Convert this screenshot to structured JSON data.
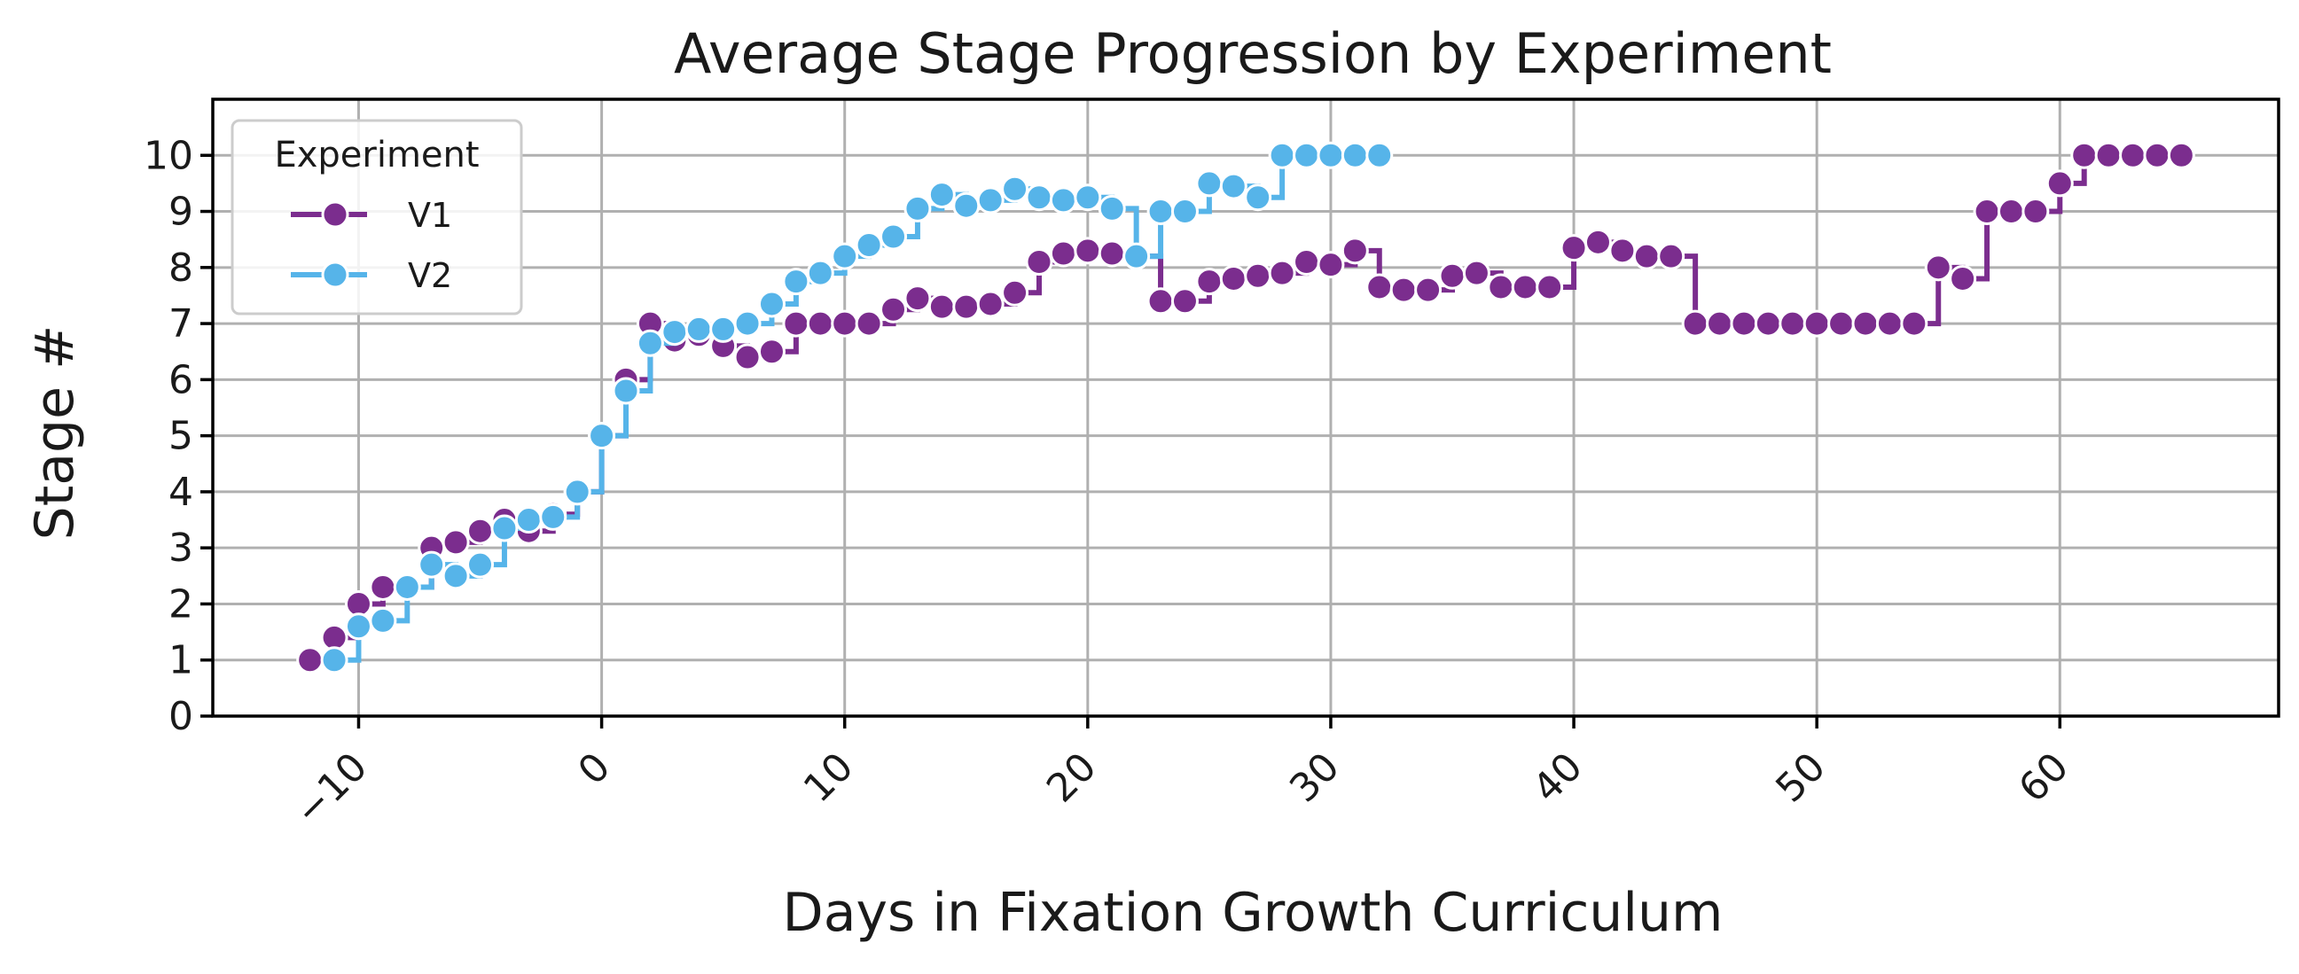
{
  "chart_data": {
    "type": "line",
    "title": "Average Stage Progression by Experiment",
    "xlabel": "Days in Fixation Growth Curriculum",
    "ylabel": "Stage #",
    "xlim": [
      -16,
      69
    ],
    "ylim": [
      0,
      11
    ],
    "x_ticks": [
      -10,
      0,
      10,
      20,
      30,
      40,
      50,
      60
    ],
    "x_tick_labels": [
      "−10",
      "0",
      "10",
      "20",
      "30",
      "40",
      "50",
      "60"
    ],
    "x_tick_rotation_deg": -45,
    "y_ticks": [
      0,
      1,
      2,
      3,
      4,
      5,
      6,
      7,
      8,
      9,
      10
    ],
    "y_tick_labels": [
      "0",
      "1",
      "2",
      "3",
      "4",
      "5",
      "6",
      "7",
      "8",
      "9",
      "10"
    ],
    "grid": true,
    "line_style": "step-post",
    "legend": {
      "title": "Experiment",
      "placement": "upper-left"
    },
    "series": [
      {
        "name": "V1",
        "color": "#7b2d8e",
        "points": [
          [
            -12,
            1.0
          ],
          [
            -11,
            1.4
          ],
          [
            -10,
            2.0
          ],
          [
            -9,
            2.3
          ],
          [
            -8,
            2.3
          ],
          [
            -7,
            3.0
          ],
          [
            -6,
            3.1
          ],
          [
            -5,
            3.3
          ],
          [
            -4,
            3.5
          ],
          [
            -3,
            3.3
          ],
          [
            -2,
            3.6
          ],
          [
            -1,
            4.0
          ],
          [
            0,
            5.0
          ],
          [
            1,
            6.0
          ],
          [
            2,
            7.0
          ],
          [
            3,
            6.7
          ],
          [
            4,
            6.8
          ],
          [
            5,
            6.6
          ],
          [
            6,
            6.4
          ],
          [
            7,
            6.5
          ],
          [
            8,
            7.0
          ],
          [
            9,
            7.0
          ],
          [
            10,
            7.0
          ],
          [
            11,
            7.0
          ],
          [
            12,
            7.25
          ],
          [
            13,
            7.45
          ],
          [
            14,
            7.3
          ],
          [
            15,
            7.3
          ],
          [
            16,
            7.35
          ],
          [
            17,
            7.55
          ],
          [
            18,
            8.1
          ],
          [
            19,
            8.25
          ],
          [
            20,
            8.3
          ],
          [
            21,
            8.25
          ],
          [
            22,
            8.2
          ],
          [
            23,
            7.4
          ],
          [
            24,
            7.4
          ],
          [
            25,
            7.75
          ],
          [
            26,
            7.8
          ],
          [
            27,
            7.85
          ],
          [
            28,
            7.9
          ],
          [
            29,
            8.1
          ],
          [
            30,
            8.05
          ],
          [
            31,
            8.3
          ],
          [
            32,
            7.65
          ],
          [
            33,
            7.6
          ],
          [
            34,
            7.6
          ],
          [
            35,
            7.85
          ],
          [
            36,
            7.9
          ],
          [
            37,
            7.65
          ],
          [
            38,
            7.65
          ],
          [
            39,
            7.65
          ],
          [
            40,
            8.35
          ],
          [
            41,
            8.45
          ],
          [
            42,
            8.3
          ],
          [
            43,
            8.2
          ],
          [
            44,
            8.2
          ],
          [
            45,
            7.0
          ],
          [
            46,
            7.0
          ],
          [
            47,
            7.0
          ],
          [
            48,
            7.0
          ],
          [
            49,
            7.0
          ],
          [
            50,
            7.0
          ],
          [
            51,
            7.0
          ],
          [
            52,
            7.0
          ],
          [
            53,
            7.0
          ],
          [
            54,
            7.0
          ],
          [
            55,
            8.0
          ],
          [
            56,
            7.8
          ],
          [
            57,
            9.0
          ],
          [
            58,
            9.0
          ],
          [
            59,
            9.0
          ],
          [
            60,
            9.5
          ],
          [
            61,
            10.0
          ],
          [
            62,
            10.0
          ],
          [
            63,
            10.0
          ],
          [
            64,
            10.0
          ],
          [
            65,
            10.0
          ]
        ]
      },
      {
        "name": "V2",
        "color": "#56b4e9",
        "points": [
          [
            -11,
            1.0
          ],
          [
            -10,
            1.6
          ],
          [
            -9,
            1.7
          ],
          [
            -8,
            2.3
          ],
          [
            -7,
            2.7
          ],
          [
            -6,
            2.5
          ],
          [
            -5,
            2.7
          ],
          [
            -4,
            3.35
          ],
          [
            -3,
            3.5
          ],
          [
            -2,
            3.55
          ],
          [
            -1,
            4.0
          ],
          [
            0,
            5.0
          ],
          [
            1,
            5.8
          ],
          [
            2,
            6.65
          ],
          [
            3,
            6.85
          ],
          [
            4,
            6.9
          ],
          [
            5,
            6.9
          ],
          [
            6,
            7.0
          ],
          [
            7,
            7.35
          ],
          [
            8,
            7.75
          ],
          [
            9,
            7.9
          ],
          [
            10,
            8.2
          ],
          [
            11,
            8.4
          ],
          [
            12,
            8.55
          ],
          [
            13,
            9.05
          ],
          [
            14,
            9.3
          ],
          [
            15,
            9.1
          ],
          [
            16,
            9.2
          ],
          [
            17,
            9.4
          ],
          [
            18,
            9.25
          ],
          [
            19,
            9.2
          ],
          [
            20,
            9.25
          ],
          [
            21,
            9.05
          ],
          [
            22,
            8.2
          ],
          [
            23,
            9.0
          ],
          [
            24,
            9.0
          ],
          [
            25,
            9.5
          ],
          [
            26,
            9.45
          ],
          [
            27,
            9.25
          ],
          [
            28,
            10.0
          ],
          [
            29,
            10.0
          ],
          [
            30,
            10.0
          ],
          [
            31,
            10.0
          ],
          [
            32,
            10.0
          ]
        ]
      }
    ]
  }
}
